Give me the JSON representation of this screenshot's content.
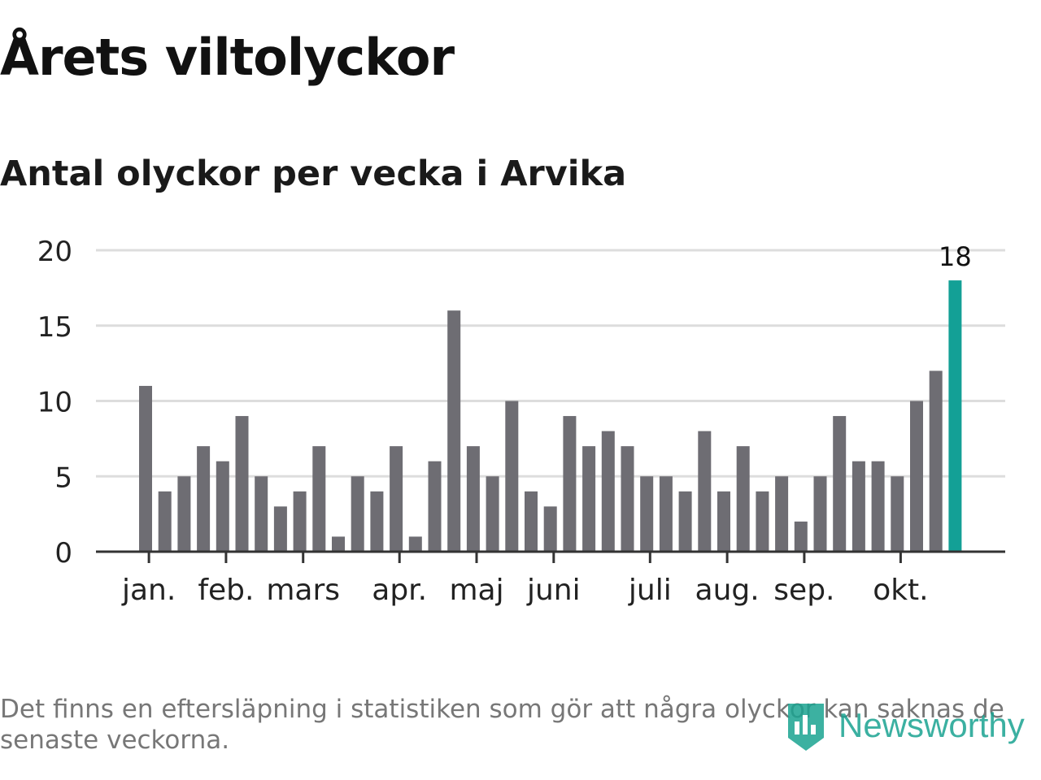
{
  "title": "Årets viltolyckor",
  "subtitle": "Antal olyckor per vecka i Arvika",
  "footnote": "Det finns en eftersläpning i statistiken som gör att några olyckor kan saknas de senaste veckorna.",
  "brand": {
    "name": "Newsworthy",
    "icon": "newsworthy-logo-icon",
    "color": "#1aa391"
  },
  "colors": {
    "bar": "#6e6d73",
    "highlight": "#13a096",
    "grid": "#dddddd",
    "axis": "#333333",
    "text": "#222222"
  },
  "chart_data": {
    "type": "bar",
    "xlabel": "",
    "ylabel": "",
    "ylim": [
      0,
      20
    ],
    "yticks": [
      0,
      5,
      10,
      15,
      20
    ],
    "grid": true,
    "values": [
      11,
      4,
      5,
      7,
      6,
      9,
      5,
      3,
      4,
      7,
      1,
      5,
      4,
      7,
      1,
      6,
      16,
      7,
      5,
      10,
      4,
      3,
      9,
      7,
      8,
      7,
      5,
      5,
      4,
      8,
      4,
      7,
      4,
      5,
      2,
      5,
      9,
      6,
      6,
      5,
      10,
      12,
      18
    ],
    "month_labels": [
      {
        "label": "jan.",
        "week_index": 0.3
      },
      {
        "label": "feb.",
        "week_index": 4.3
      },
      {
        "label": "mars",
        "week_index": 8.3
      },
      {
        "label": "apr.",
        "week_index": 13.3
      },
      {
        "label": "maj",
        "week_index": 17.3
      },
      {
        "label": "juni",
        "week_index": 21.3
      },
      {
        "label": "juli",
        "week_index": 26.3
      },
      {
        "label": "aug.",
        "week_index": 30.3
      },
      {
        "label": "sep.",
        "week_index": 34.3
      },
      {
        "label": "okt.",
        "week_index": 39.3
      }
    ],
    "highlight_index": 42,
    "highlight_label": "18"
  }
}
